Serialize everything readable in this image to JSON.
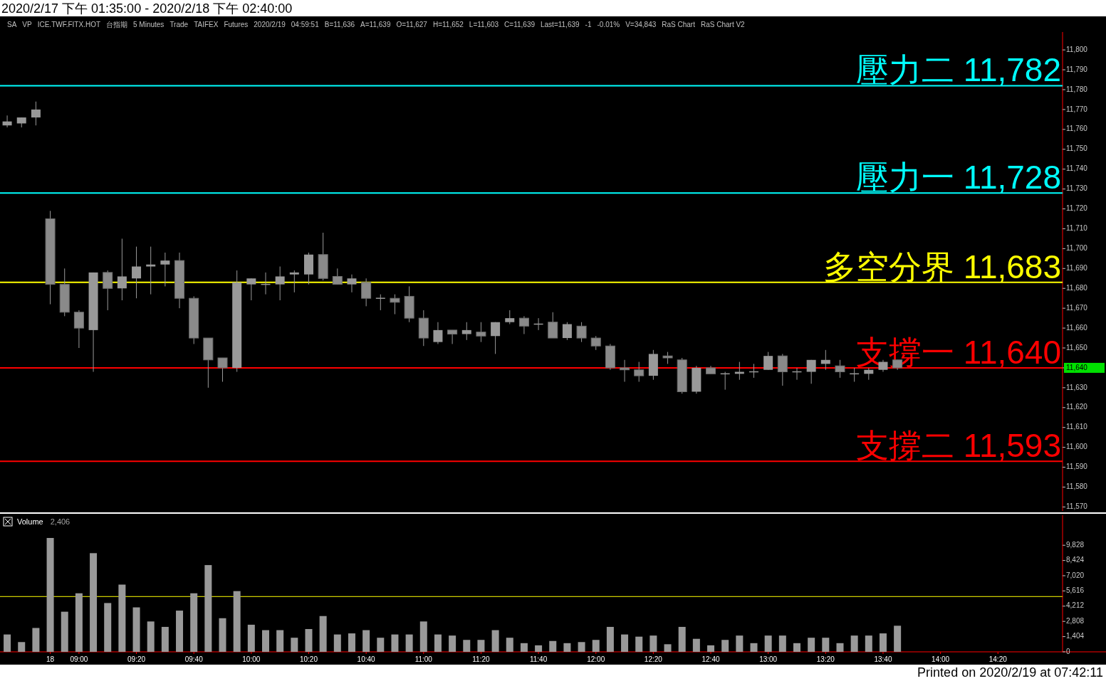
{
  "chart_data": [
    {
      "type": "candlestick",
      "title": "2020/2/17 下午 01:35:00 - 2020/2/18 下午 02:40:00",
      "color": "#999999",
      "tick_labels": "y",
      "categories": [
        null,
        null,
        null,
        null,
        null,
        null,
        null,
        null,
        null,
        null,
        null,
        null,
        null,
        null,
        null,
        null,
        null,
        null,
        null,
        null,
        null,
        null,
        null,
        null,
        null,
        null,
        null,
        null,
        null,
        null,
        null,
        null,
        null,
        null,
        null,
        null,
        null,
        null,
        null,
        null,
        null,
        null,
        null,
        null,
        null,
        null,
        null,
        null,
        null,
        null,
        null,
        null,
        null,
        null,
        null,
        null,
        null,
        null,
        null,
        null,
        null,
        null,
        null,
        null,
        null,
        null,
        null,
        null,
        null,
        null,
        null,
        null,
        null,
        null
      ],
      "ohlc": [
        [
          11762,
          11767,
          11761,
          11764
        ],
        [
          11763,
          11766,
          11761,
          11766
        ],
        [
          11766,
          11774,
          11762,
          11770
        ],
        [
          11715,
          11719,
          11672,
          11682
        ],
        [
          11682,
          11690,
          11666,
          11668
        ],
        [
          11668,
          11669,
          11650,
          11660
        ],
        [
          11659,
          11688,
          11638,
          11688
        ],
        [
          11688,
          11689,
          11669,
          11680
        ],
        [
          11680,
          11705,
          11674,
          11686
        ],
        [
          11685,
          11701,
          11675,
          11691
        ],
        [
          11691,
          11701,
          11677,
          11692
        ],
        [
          11692,
          11698,
          11681,
          11694
        ],
        [
          11694,
          11698,
          11670,
          11675
        ],
        [
          11675,
          11676,
          11652,
          11655
        ],
        [
          11655,
          11655,
          11630,
          11644
        ],
        [
          11645,
          11645,
          11633,
          11640
        ],
        [
          11640,
          11689,
          11638,
          11683
        ],
        [
          11682,
          11685,
          11674,
          11685
        ],
        [
          11682,
          11688,
          11677,
          11682
        ],
        [
          11682,
          11691,
          11674,
          11686
        ],
        [
          11687,
          11689,
          11678,
          11688
        ],
        [
          11687,
          11698,
          11682,
          11697
        ],
        [
          11697,
          11708,
          11684,
          11685
        ],
        [
          11686,
          11690,
          11682,
          11682
        ],
        [
          11682,
          11687,
          11678,
          11685
        ],
        [
          11683,
          11685,
          11671,
          11675
        ],
        [
          11675,
          11677,
          11669,
          11675
        ],
        [
          11675,
          11677,
          11667,
          11673
        ],
        [
          11676,
          11681,
          11663,
          11665
        ],
        [
          11665,
          11669,
          11651,
          11655
        ],
        [
          11653,
          11663,
          11652,
          11659
        ],
        [
          11659,
          11659,
          11652,
          11657
        ],
        [
          11657,
          11663,
          11654,
          11659
        ],
        [
          11658,
          11663,
          11653,
          11656
        ],
        [
          11656,
          11663,
          11647,
          11663
        ],
        [
          11663,
          11669,
          11662,
          11665
        ],
        [
          11665,
          11666,
          11657,
          11661
        ],
        [
          11662,
          11665,
          11659,
          11662
        ],
        [
          11663,
          11668,
          11655,
          11655
        ],
        [
          11655,
          11663,
          11654,
          11662
        ],
        [
          11661,
          11663,
          11653,
          11655
        ],
        [
          11655,
          11656,
          11649,
          11651
        ],
        [
          11651,
          11652,
          11639,
          11640
        ],
        [
          11640,
          11644,
          11633,
          11639
        ],
        [
          11639,
          11643,
          11633,
          11636
        ],
        [
          11636,
          11649,
          11634,
          11647
        ],
        [
          11646,
          11648,
          11642,
          11645
        ],
        [
          11644,
          11645,
          11627,
          11628
        ],
        [
          11628,
          11641,
          11627,
          11640
        ],
        [
          11640,
          11641,
          11637,
          11637
        ],
        [
          11637,
          11638,
          11629,
          11637
        ],
        [
          11637,
          11643,
          11634,
          11638
        ],
        [
          11638,
          11642,
          11635,
          11638
        ],
        [
          11639,
          11648,
          11639,
          11646
        ],
        [
          11646,
          11647,
          11631,
          11638
        ],
        [
          11638,
          11640,
          11634,
          11638
        ],
        [
          11638,
          11644,
          11632,
          11644
        ],
        [
          11642,
          11649,
          11639,
          11644
        ],
        [
          11641,
          11644,
          11635,
          11638
        ],
        [
          11637,
          11640,
          11633,
          11637
        ],
        [
          11637,
          11640,
          11634,
          11639
        ],
        [
          11639,
          11644,
          11638,
          11643
        ],
        [
          11644,
          11644,
          11639,
          11640
        ],
        null,
        null,
        null,
        null,
        null,
        null,
        null,
        null,
        null,
        null,
        null
      ],
      "ylim": [
        11568,
        11809
      ],
      "yticks": [
        {
          "value": 11570,
          "label": "11,570"
        },
        {
          "value": 11580,
          "label": "11,580"
        },
        {
          "value": 11590,
          "label": "11,590"
        },
        {
          "value": 11600,
          "label": "11,600"
        },
        {
          "value": 11610,
          "label": "11,610"
        },
        {
          "value": 11620,
          "label": "11,620"
        },
        {
          "value": 11630,
          "label": "11,630"
        },
        {
          "value": 11640,
          "label": "11,640"
        },
        {
          "value": 11650,
          "label": "11,650"
        },
        {
          "value": 11660,
          "label": "11,660"
        },
        {
          "value": 11670,
          "label": "11,670"
        },
        {
          "value": 11680,
          "label": "11,680"
        },
        {
          "value": 11690,
          "label": "11,690"
        },
        {
          "value": 11700,
          "label": "11,700"
        },
        {
          "value": 11710,
          "label": "11,710"
        },
        {
          "value": 11720,
          "label": "11,720"
        },
        {
          "value": 11730,
          "label": "11,730"
        },
        {
          "value": 11740,
          "label": "11,740"
        },
        {
          "value": 11750,
          "label": "11,750"
        },
        {
          "value": 11760,
          "label": "11,760"
        },
        {
          "value": 11770,
          "label": "11,770"
        },
        {
          "value": 11780,
          "label": "11,780"
        },
        {
          "value": 11790,
          "label": "11,790"
        },
        {
          "value": 11800,
          "label": "11,800"
        }
      ],
      "ref_lines": [
        {
          "axis": "y",
          "value": 11782,
          "label": "壓力二 11,782",
          "color": "#00ffff"
        },
        {
          "axis": "y",
          "value": 11728,
          "label": "壓力一 11,728",
          "color": "#00ffff"
        },
        {
          "axis": "y",
          "value": 11683,
          "label": "多空分界 11,683",
          "color": "#ffff00"
        },
        {
          "axis": "y",
          "value": 11640,
          "label": "支撐一 11,640",
          "color": "#ff0000"
        },
        {
          "axis": "y",
          "value": 11593,
          "label": "支撐二 11,593",
          "color": "#ff0000"
        }
      ],
      "annotations": [
        "SA",
        "VP",
        "ICE.TWF.FITX.HOT",
        "台指期",
        "5 Minutes",
        "Trade",
        "TAIFEX",
        "Futures",
        "2020/2/19",
        "04:59:51",
        "B=11,636",
        "A=11,639",
        "O=11,627",
        "H=11,652",
        "L=11,603",
        "C=11,639",
        "Last=11,639",
        "-1",
        "-0.01%",
        "V=34,843",
        "RaS Chart",
        "RaS Chart V2"
      ]
    },
    {
      "type": "bar",
      "title": "Volume",
      "subtitle": "2,406",
      "color": "#999999",
      "categories": [
        null,
        null,
        null,
        "18",
        null,
        "09:00",
        null,
        null,
        null,
        "09:20",
        null,
        null,
        null,
        "09:40",
        null,
        null,
        null,
        "10:00",
        null,
        null,
        null,
        "10:20",
        null,
        null,
        null,
        "10:40",
        null,
        null,
        null,
        "11:00",
        null,
        null,
        null,
        "11:20",
        null,
        null,
        null,
        "11:40",
        null,
        null,
        null,
        "12:00",
        null,
        null,
        null,
        "12:20",
        null,
        null,
        null,
        "12:40",
        null,
        null,
        null,
        "13:00",
        null,
        null,
        null,
        "13:20",
        null,
        null,
        null,
        "13:40",
        null,
        null,
        null,
        "14:00",
        null,
        null,
        null,
        "14:20",
        null,
        null,
        null,
        null
      ],
      "values": [
        1600,
        900,
        2200,
        10500,
        3700,
        5400,
        9100,
        4500,
        6200,
        4100,
        2800,
        2300,
        3800,
        5400,
        8000,
        3100,
        5600,
        2500,
        2000,
        2000,
        1300,
        2100,
        3300,
        1600,
        1700,
        2000,
        1300,
        1600,
        1600,
        2800,
        1600,
        1500,
        1100,
        1100,
        2000,
        1300,
        800,
        600,
        1000,
        800,
        900,
        1100,
        2300,
        1600,
        1400,
        1500,
        700,
        2300,
        1200,
        600,
        1100,
        1500,
        800,
        1500,
        1500,
        800,
        1300,
        1300,
        800,
        1500,
        1500,
        1700,
        2406,
        null,
        null,
        null,
        null,
        null,
        null,
        null,
        null,
        null,
        null,
        null
      ],
      "ylim": [
        0,
        12600
      ],
      "yticks": [
        0,
        {
          "value": 1404,
          "label": "1,404"
        },
        {
          "value": 2808,
          "label": "2,808"
        },
        {
          "value": 4212,
          "label": "4,212"
        },
        {
          "value": 5616,
          "label": "5,616"
        },
        {
          "value": 7020,
          "label": "7,020"
        },
        {
          "value": 8424,
          "label": "8,424"
        },
        {
          "value": 9828,
          "label": "9,828"
        }
      ],
      "ref_lines": [
        {
          "axis": "y",
          "value": 5100,
          "color": "#ffff00"
        }
      ],
      "annotations": [
        "Printed on 2020/2/19 at 07:42:11"
      ]
    }
  ]
}
